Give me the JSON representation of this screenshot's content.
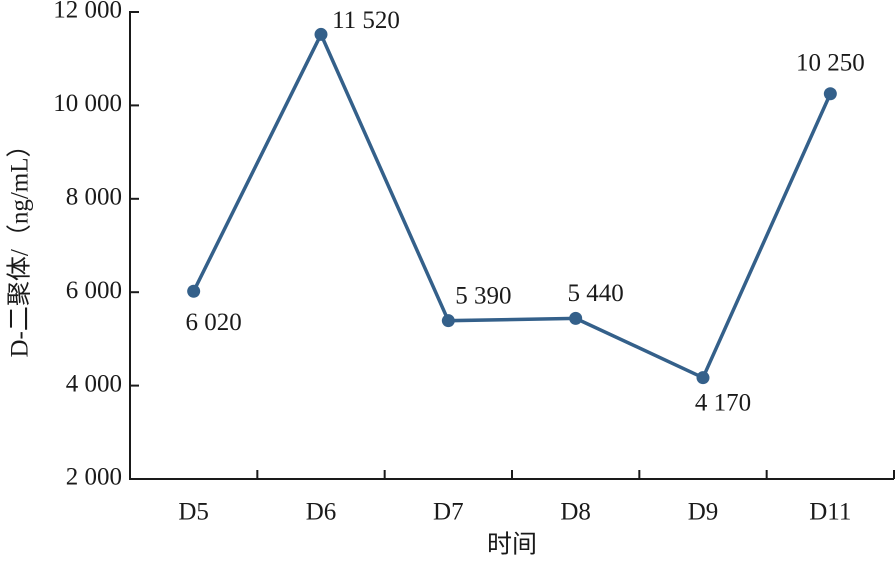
{
  "chart_data": {
    "type": "line",
    "x_label": "时间",
    "y_label": "D-二聚体/（ng/mL）",
    "categories": [
      "D5",
      "D6",
      "D7",
      "D8",
      "D9",
      "D11"
    ],
    "series": [
      {
        "color": "#34608a",
        "values": [
          6020,
          11520,
          5390,
          5440,
          4170,
          10250
        ],
        "value_labels": [
          "6 020",
          "11 520",
          "5 390",
          "5 440",
          "4 170",
          "10 250"
        ]
      }
    ],
    "ylim": [
      2000,
      12000
    ],
    "yticks": [
      {
        "value": 2000,
        "label": "2 000"
      },
      {
        "value": 4000,
        "label": "4 000"
      },
      {
        "value": 6000,
        "label": "6 000"
      },
      {
        "value": 8000,
        "label": "8 000"
      },
      {
        "value": 10000,
        "label": "10 000"
      },
      {
        "value": 12000,
        "label": "12 000"
      }
    ]
  }
}
